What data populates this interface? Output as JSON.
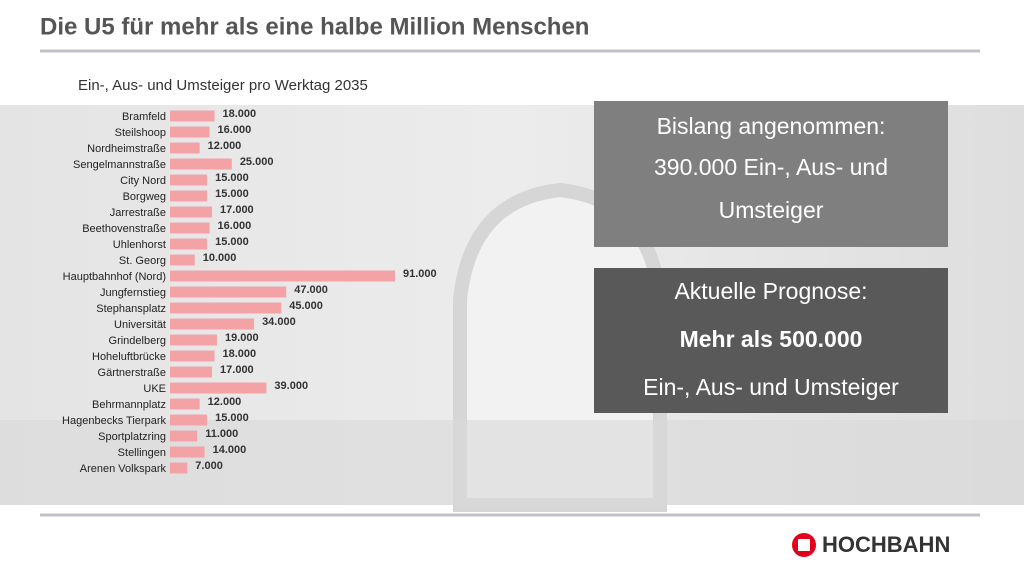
{
  "title": "Die U5 für mehr als eine halbe Million Menschen",
  "chart_data": {
    "type": "bar",
    "orientation": "horizontal",
    "title": "Ein-, Aus- und Umsteiger pro Werktag 2035",
    "color": "#f3a3a5",
    "categories": [
      "Bramfeld",
      "Steilshoop",
      "Nordheimstraße",
      "Sengelmannstraße",
      "City Nord",
      "Borgweg",
      "Jarrestraße",
      "Beethovenstraße",
      "Uhlenhorst",
      "St. Georg",
      "Hauptbahnhof (Nord)",
      "Jungfernstieg",
      "Stephansplatz",
      "Universität",
      "Grindelberg",
      "Hoheluftbrücke",
      "Gärtnerstraße",
      "UKE",
      "Behrmannplatz",
      "Hagenbecks Tierpark",
      "Sportplatzring",
      "Stellingen",
      "Arenen Volkspark"
    ],
    "values": [
      18000,
      16000,
      12000,
      25000,
      15000,
      15000,
      17000,
      16000,
      15000,
      10000,
      91000,
      47000,
      45000,
      34000,
      19000,
      18000,
      17000,
      39000,
      12000,
      15000,
      11000,
      14000,
      7000
    ],
    "value_labels": [
      "18.000",
      "16.000",
      "12.000",
      "25.000",
      "15.000",
      "15.000",
      "17.000",
      "16.000",
      "15.000",
      "10.000",
      "91.000",
      "47.000",
      "45.000",
      "34.000",
      "19.000",
      "18.000",
      "17.000",
      "39.000",
      "12.000",
      "15.000",
      "11.000",
      "14.000",
      "7.000"
    ]
  },
  "boxes": [
    {
      "lines": [
        "Bislang angenommen:",
        "390.000 Ein-, Aus- und",
        "Umsteiger"
      ]
    },
    {
      "lines": [
        "Aktuelle Prognose:",
        "Mehr als 500.000",
        "Ein-, Aus- und Umsteiger"
      ]
    }
  ],
  "logo": "HOCHBAHN"
}
